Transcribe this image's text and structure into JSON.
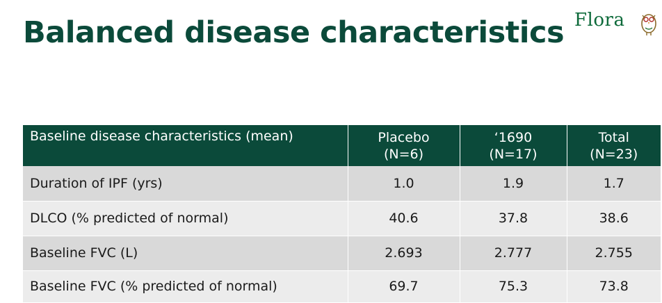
{
  "slide": {
    "title": "Balanced disease characteristics",
    "logo_text": "Flora",
    "logo_icon": "owl-icon"
  },
  "table": {
    "header": {
      "label": "Baseline disease characteristics (mean)",
      "columns": [
        {
          "name": "Placebo",
          "n": "(N=6)"
        },
        {
          "name": "‘1690",
          "n": "(N=17)"
        },
        {
          "name": "Total",
          "n": "(N=23)"
        }
      ]
    },
    "rows": [
      {
        "label": "Duration of IPF (yrs)",
        "values": [
          "1.0",
          "1.9",
          "1.7"
        ]
      },
      {
        "label": "DLCO (% predicted of normal)",
        "values": [
          "40.6",
          "37.8",
          "38.6"
        ]
      },
      {
        "label": "Baseline FVC (L)",
        "values": [
          "2.693",
          "2.777",
          "2.755"
        ]
      },
      {
        "label": "Baseline FVC (% predicted of normal)",
        "values": [
          "69.7",
          "75.3",
          "73.8"
        ]
      }
    ]
  },
  "colors": {
    "title": "#0b4a3a",
    "header_bg": "#0b4a3a",
    "row_dark": "#d9d9d9",
    "row_light": "#ececec",
    "logo": "#0d6a3a"
  }
}
